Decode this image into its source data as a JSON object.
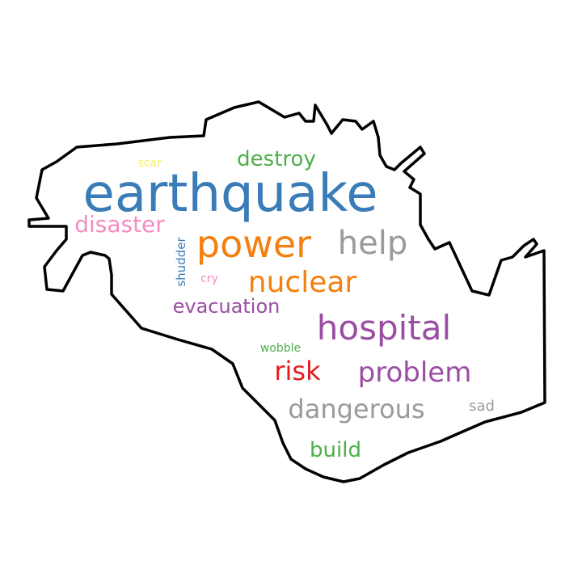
{
  "words": [
    {
      "text": "earthquake",
      "color": "#3a7cb8"
    },
    {
      "text": "power",
      "color": "#f47f0e"
    },
    {
      "text": "help",
      "color": "#9a9a9a"
    },
    {
      "text": "hospital",
      "color": "#9a4ea3"
    },
    {
      "text": "nuclear",
      "color": "#f47f0e"
    },
    {
      "text": "problem",
      "color": "#9a4ea3"
    },
    {
      "text": "dangerous",
      "color": "#9a9a9a"
    },
    {
      "text": "disaster",
      "color": "#f58bbf"
    },
    {
      "text": "destroy",
      "color": "#4daf4a"
    },
    {
      "text": "evacuation",
      "color": "#9a4ea3"
    },
    {
      "text": "risk",
      "color": "#e41a1c"
    },
    {
      "text": "build",
      "color": "#4daf4a"
    },
    {
      "text": "shudder",
      "color": "#3a7cb8"
    },
    {
      "text": "sad",
      "color": "#9a9a9a"
    },
    {
      "text": "wobble",
      "color": "#4daf4a"
    },
    {
      "text": "cry",
      "color": "#f58bbf"
    },
    {
      "text": "scar",
      "color": "#f2f25a"
    }
  ],
  "outline_color": "#000000"
}
